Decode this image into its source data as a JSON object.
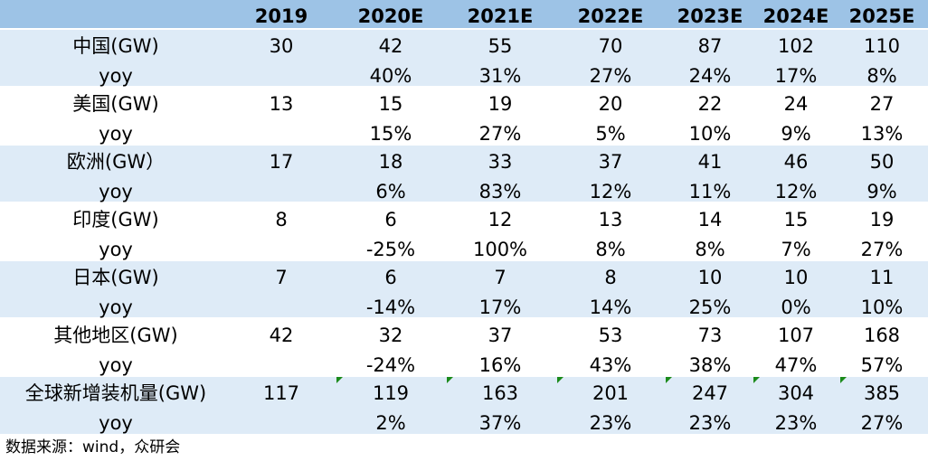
{
  "table": {
    "header": [
      "2019",
      "2020E",
      "2021E",
      "2022E",
      "2023E",
      "2024E",
      "2025E"
    ],
    "rows": [
      {
        "label": "中国(GW)",
        "values": [
          30,
          42,
          55,
          70,
          87,
          102,
          110
        ],
        "yoy_label": "yoy",
        "yoy": [
          "40%",
          "31%",
          "27%",
          "24%",
          "17%",
          "8%"
        ]
      },
      {
        "label": "美国(GW)",
        "values": [
          13,
          15,
          19,
          20,
          22,
          24,
          27
        ],
        "yoy_label": "yoy",
        "yoy": [
          "15%",
          "27%",
          "5%",
          "10%",
          "9%",
          "13%"
        ]
      },
      {
        "label": "欧洲(GW）",
        "values": [
          17,
          18,
          33,
          37,
          41,
          46,
          50
        ],
        "yoy_label": "yoy",
        "yoy": [
          "6%",
          "83%",
          "12%",
          "11%",
          "12%",
          "9%"
        ]
      },
      {
        "label": "印度(GW)",
        "values": [
          8,
          6,
          12,
          13,
          14,
          15,
          19
        ],
        "yoy_label": "yoy",
        "yoy": [
          "-25%",
          "100%",
          "8%",
          "8%",
          "7%",
          "27%"
        ]
      },
      {
        "label": "日本(GW)",
        "values": [
          7,
          6,
          7,
          8,
          10,
          10,
          11
        ],
        "yoy_label": "yoy",
        "yoy": [
          "-14%",
          "17%",
          "14%",
          "25%",
          "0%",
          "10%"
        ]
      },
      {
        "label": "其他地区(GW)",
        "values": [
          42,
          32,
          37,
          53,
          73,
          107,
          168
        ],
        "yoy_label": "yoy",
        "yoy": [
          "-24%",
          "16%",
          "43%",
          "38%",
          "47%",
          "57%"
        ]
      },
      {
        "label": "全球新增装机量(GW)",
        "values": [
          117,
          119,
          163,
          201,
          247,
          304,
          385
        ],
        "yoy_label": "yoy",
        "yoy": [
          "2%",
          "37%",
          "23%",
          "23%",
          "23%",
          "27%"
        ]
      }
    ]
  },
  "source": "数据来源：wind，众研会"
}
